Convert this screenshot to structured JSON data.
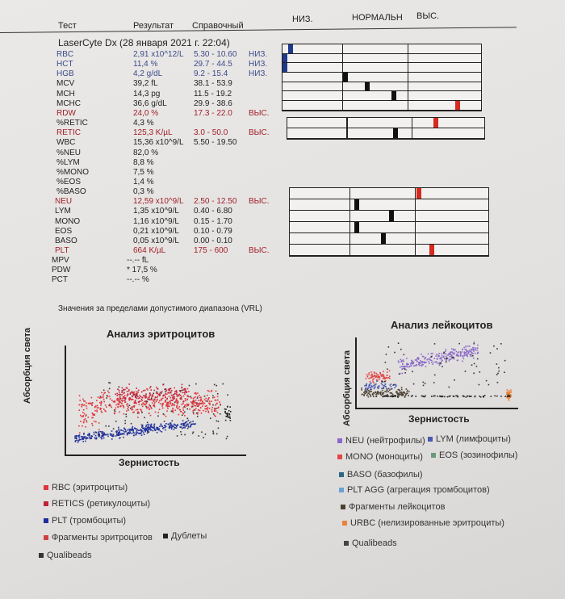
{
  "header": {
    "test": "Тест",
    "result": "Результат",
    "reference": "Справочный",
    "low": "НИЗ.",
    "normal": "НОРМАЛЬН",
    "high": "ВЫС."
  },
  "instrument": "LaserCyte Dx (28 января 2021 г. 22:04)",
  "rows": [
    {
      "name": "RBC",
      "result": "2,91 x10^12/L",
      "ref": "5.30 - 10.60",
      "flag": "НИЗ.",
      "color": "blue"
    },
    {
      "name": "HCT",
      "result": "11,4 %",
      "ref": "29.7 - 44.5",
      "flag": "НИЗ.",
      "color": "blue"
    },
    {
      "name": "HGB",
      "result": "4,2 g/dL",
      "ref": "9.2 - 15.4",
      "flag": "НИЗ.",
      "color": "blue"
    },
    {
      "name": "MCV",
      "result": "39,2 fL",
      "ref": "38.1 - 53.9",
      "flag": "",
      "color": "black"
    },
    {
      "name": "MCH",
      "result": "14,3 pg",
      "ref": "11.5 - 19.2",
      "flag": "",
      "color": "black"
    },
    {
      "name": "MCHC",
      "result": "36,6 g/dL",
      "ref": "29.9 - 38.6",
      "flag": "",
      "color": "black"
    },
    {
      "name": "RDW",
      "result": "24,0 %",
      "ref": "17.3 - 22.0",
      "flag": "ВЫС.",
      "color": "red"
    },
    {
      "name": "%RETIC",
      "result": "4,3 %",
      "ref": "",
      "flag": "",
      "color": "black"
    },
    {
      "name": "RETIC",
      "result": "125,3 K/µL",
      "ref": "3.0 - 50.0",
      "flag": "ВЫС.",
      "color": "red"
    },
    {
      "name": "WBC",
      "result": "15,36 x10^9/L",
      "ref": "5.50 - 19.50",
      "flag": "",
      "color": "black"
    },
    {
      "name": "%NEU",
      "result": "82,0 %",
      "ref": "",
      "flag": "",
      "color": "black"
    },
    {
      "name": "%LYM",
      "result": "8,8 %",
      "ref": "",
      "flag": "",
      "color": "black"
    },
    {
      "name": "%MONO",
      "result": "7,5 %",
      "ref": "",
      "flag": "",
      "color": "black"
    },
    {
      "name": "%EOS",
      "result": "1,4 %",
      "ref": "",
      "flag": "",
      "color": "black"
    },
    {
      "name": "%BASO",
      "result": "0,3 %",
      "ref": "",
      "flag": "",
      "color": "black"
    },
    {
      "name": "NEU",
      "result": "12,59 x10^9/L",
      "ref": "2.50 - 12.50",
      "flag": "ВЫС.",
      "color": "red"
    },
    {
      "name": "LYM",
      "result": "1,35 x10^9/L",
      "ref": "0.40 - 6.80",
      "flag": "",
      "color": "black"
    },
    {
      "name": "MONO",
      "result": "1,16 x10^9/L",
      "ref": "0.15 - 1.70",
      "flag": "",
      "color": "black"
    },
    {
      "name": "EOS",
      "result": "0,21 x10^9/L",
      "ref": "0.10 - 0.79",
      "flag": "",
      "color": "black"
    },
    {
      "name": "BASO",
      "result": "0,05 x10^9/L",
      "ref": "0.00 - 0.10",
      "flag": "",
      "color": "black"
    },
    {
      "name": "PLT",
      "result": "664 K/µL",
      "ref": "175 - 600",
      "flag": "ВЫС.",
      "color": "red"
    },
    {
      "name": "MPV",
      "result": "--.--  fL",
      "ref": "",
      "flag": "",
      "color": "black"
    },
    {
      "name": "PDW",
      "result": "* 17,5 %",
      "ref": "",
      "flag": "",
      "color": "black"
    },
    {
      "name": "PCT",
      "result": "--.--  %",
      "ref": "",
      "flag": "",
      "color": "black"
    }
  ],
  "gauges": [
    {
      "group": 1,
      "items": [
        {
          "test": "RBC",
          "level": 0.1,
          "color": "#1f3a8a"
        },
        {
          "test": "HCT",
          "level": 0.0,
          "color": "#1f3a8a"
        },
        {
          "test": "HGB",
          "level": 0.0,
          "color": "#1f3a8a"
        },
        {
          "test": "MCV",
          "level": 1.02,
          "color": "#111111"
        },
        {
          "test": "MCH",
          "level": 1.35,
          "color": "#111111"
        },
        {
          "test": "MCHC",
          "level": 1.75,
          "color": "#111111"
        },
        {
          "test": "RDW",
          "level": 2.65,
          "color": "#d42a20"
        }
      ]
    },
    {
      "group": 2,
      "items": [
        {
          "test": "RETIC",
          "level": 2.3,
          "color": "#d42a20"
        },
        {
          "test": "WBC",
          "level": 1.72,
          "color": "#111111"
        }
      ]
    },
    {
      "group": 3,
      "items": [
        {
          "test": "NEU",
          "level": 2.02,
          "color": "#d42a20"
        },
        {
          "test": "LYM",
          "level": 1.08,
          "color": "#111111"
        },
        {
          "test": "MONO",
          "level": 1.6,
          "color": "#111111"
        },
        {
          "test": "EOS",
          "level": 1.08,
          "color": "#111111"
        },
        {
          "test": "BASO",
          "level": 1.48,
          "color": "#111111"
        },
        {
          "test": "PLT",
          "level": 2.2,
          "color": "#d42a20"
        }
      ]
    }
  ],
  "vrl_note": "Значения за пределами допустимого диапазона (VRL)",
  "rbc_chart": {
    "title": "Анализ эритроцитов",
    "ylabel": "Абсорбция света",
    "xlabel": "Зернистость",
    "legend": [
      {
        "label": "RBC (эритроциты)",
        "color": "#e0343a"
      },
      {
        "label": "RETICS (ретикулоциты)",
        "color": "#c0203a"
      },
      {
        "label": "PLT (тромбоциты)",
        "color": "#1f2f9a"
      },
      {
        "label": "Фрагменты эритроцитов",
        "color": "#d04040"
      },
      {
        "label": "Дублеты",
        "color": "#222222"
      },
      {
        "label": "Qualibeads",
        "color": "#333333"
      }
    ]
  },
  "wbc_chart": {
    "title": "Анализ лейкоцитов",
    "ylabel": "Абсорбция света",
    "xlabel": "Зернистость",
    "legend": [
      {
        "label": "NEU (нейтрофилы)",
        "color": "#8a6ac8"
      },
      {
        "label": "LYM (лимфоциты)",
        "color": "#4a5ab0"
      },
      {
        "label": "MONO (моноциты)",
        "color": "#e04848"
      },
      {
        "label": "EOS (зозинофилы)",
        "color": "#6a9a7a"
      },
      {
        "label": "BASO (базофилы)",
        "color": "#2a6a80"
      },
      {
        "label": "PLT AGG (агрегация тромбоцитов)",
        "color": "#6aa0d8"
      },
      {
        "label": "Фрагменты лейкоцитов",
        "color": "#4a4030"
      },
      {
        "label": "URBC (нелизированные эритроциты)",
        "color": "#e8843a"
      },
      {
        "label": "Qualibeads",
        "color": "#444444"
      }
    ]
  }
}
